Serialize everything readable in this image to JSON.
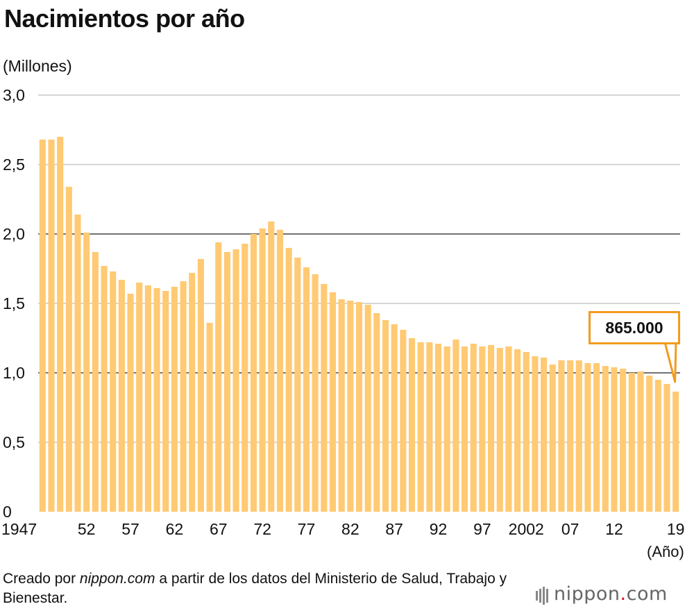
{
  "title": "Nacimientos por año",
  "y_unit": "(Millones)",
  "x_unit": "(Año)",
  "source": {
    "prefix": "Creado por ",
    "site": "nippon.com",
    "suffix": " a partir de los datos del Ministerio de Salud, Trabajo y Bienestar."
  },
  "logo": {
    "name": "nippon",
    "dot": ".",
    "tld": "com"
  },
  "callout": "865.000",
  "colors": {
    "bar": "#ffca73",
    "callout_border": "#f39a1e",
    "grid": "#c8c8c8",
    "grid_major": "#444444",
    "logo_dot": "#e8001c"
  },
  "chart_data": {
    "type": "bar",
    "title": "Nacimientos por año",
    "ylabel": "(Millones)",
    "xlabel": "(Año)",
    "ylim": [
      0,
      3.0
    ],
    "yticks": [
      {
        "value": 0,
        "label": "0"
      },
      {
        "value": 0.5,
        "label": "0,5"
      },
      {
        "value": 1.0,
        "label": "1,0"
      },
      {
        "value": 1.5,
        "label": "1,5"
      },
      {
        "value": 2.0,
        "label": "2,0"
      },
      {
        "value": 2.5,
        "label": "2,5"
      },
      {
        "value": 3.0,
        "label": "3,0"
      }
    ],
    "major_gridlines": [
      1.0,
      2.0
    ],
    "years": [
      1947,
      1948,
      1949,
      1950,
      1951,
      1952,
      1953,
      1954,
      1955,
      1956,
      1957,
      1958,
      1959,
      1960,
      1961,
      1962,
      1963,
      1964,
      1965,
      1966,
      1967,
      1968,
      1969,
      1970,
      1971,
      1972,
      1973,
      1974,
      1975,
      1976,
      1977,
      1978,
      1979,
      1980,
      1981,
      1982,
      1983,
      1984,
      1985,
      1986,
      1987,
      1988,
      1989,
      1990,
      1991,
      1992,
      1993,
      1994,
      1995,
      1996,
      1997,
      1998,
      1999,
      2000,
      2001,
      2002,
      2003,
      2004,
      2005,
      2006,
      2007,
      2008,
      2009,
      2010,
      2011,
      2012,
      2013,
      2014,
      2015,
      2016,
      2017,
      2018,
      2019
    ],
    "values": [
      2.68,
      2.68,
      2.7,
      2.34,
      2.14,
      2.01,
      1.87,
      1.77,
      1.73,
      1.67,
      1.57,
      1.65,
      1.63,
      1.61,
      1.59,
      1.62,
      1.66,
      1.72,
      1.82,
      1.36,
      1.94,
      1.87,
      1.89,
      1.93,
      2.0,
      2.04,
      2.09,
      2.03,
      1.9,
      1.83,
      1.76,
      1.71,
      1.64,
      1.58,
      1.53,
      1.52,
      1.51,
      1.49,
      1.43,
      1.38,
      1.35,
      1.31,
      1.25,
      1.22,
      1.22,
      1.21,
      1.19,
      1.24,
      1.19,
      1.21,
      1.19,
      1.2,
      1.18,
      1.19,
      1.17,
      1.15,
      1.12,
      1.11,
      1.06,
      1.09,
      1.09,
      1.09,
      1.07,
      1.07,
      1.05,
      1.04,
      1.03,
      1.0,
      1.01,
      0.98,
      0.95,
      0.92,
      0.865
    ],
    "xticks": [
      {
        "year": 1947,
        "label": "1947"
      },
      {
        "year": 1952,
        "label": "52"
      },
      {
        "year": 1957,
        "label": "57"
      },
      {
        "year": 1962,
        "label": "62"
      },
      {
        "year": 1967,
        "label": "67"
      },
      {
        "year": 1972,
        "label": "72"
      },
      {
        "year": 1977,
        "label": "77"
      },
      {
        "year": 1982,
        "label": "82"
      },
      {
        "year": 1987,
        "label": "87"
      },
      {
        "year": 1992,
        "label": "92"
      },
      {
        "year": 1997,
        "label": "97"
      },
      {
        "year": 2002,
        "label": "2002"
      },
      {
        "year": 2007,
        "label": "07"
      },
      {
        "year": 2012,
        "label": "12"
      },
      {
        "year": 2019,
        "label": "19"
      }
    ]
  }
}
